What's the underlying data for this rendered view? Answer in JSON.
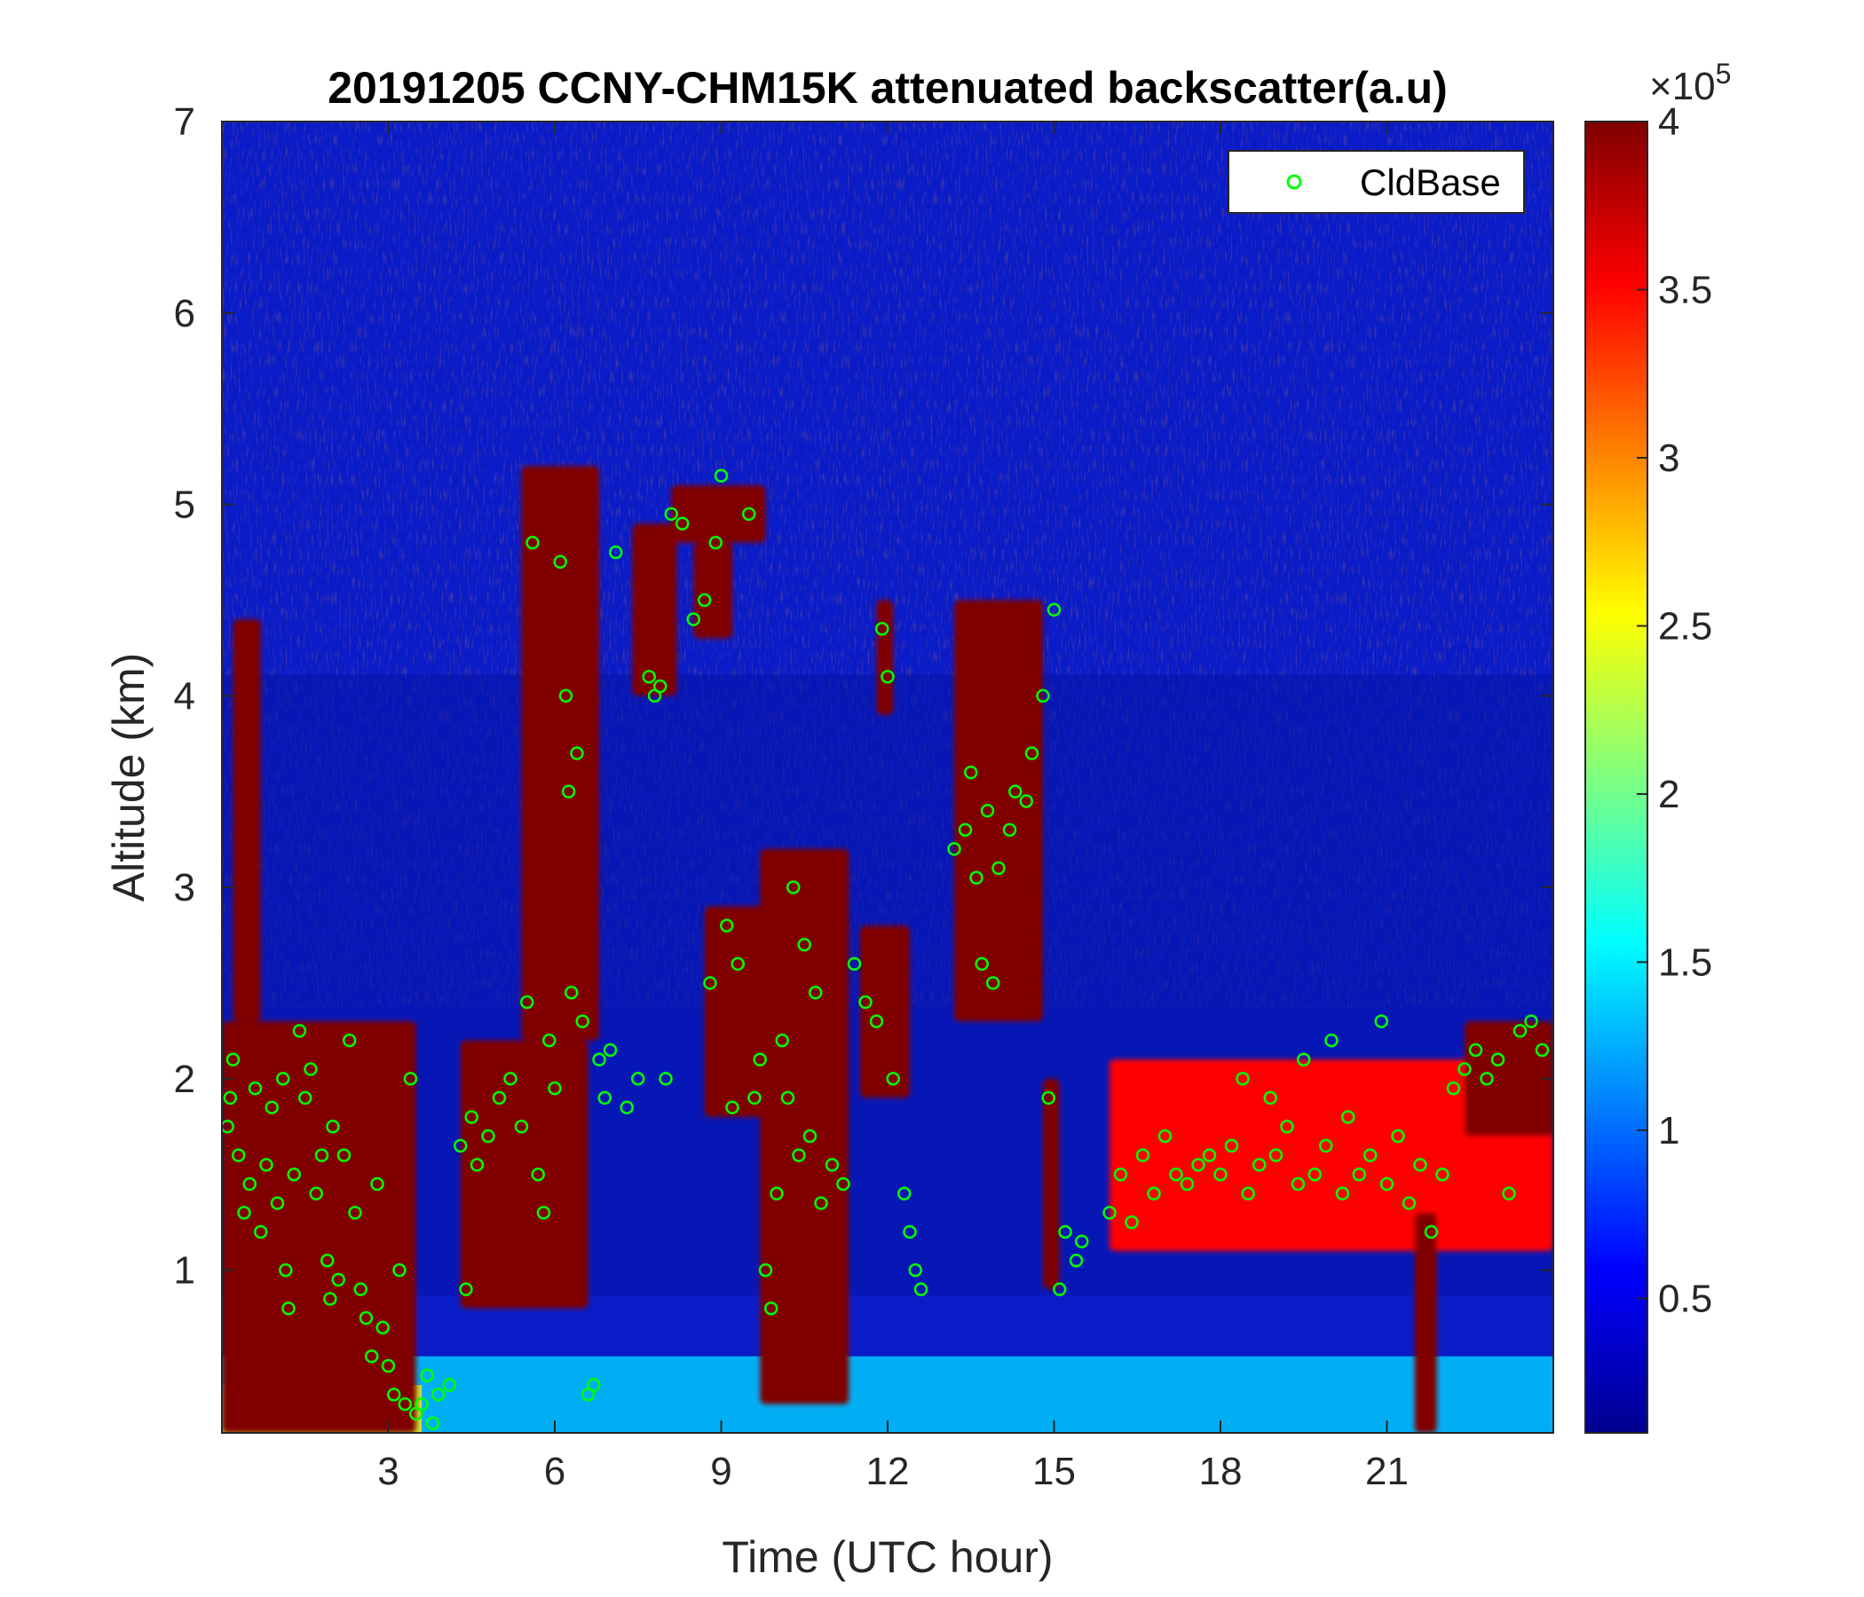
{
  "chart_data": {
    "type": "heatmap",
    "title": "20191205 CCNY-CHM15K attenuated backscatter(a.u)",
    "xlabel": "Time (UTC hour)",
    "ylabel": "Altitude (km)",
    "xlim": [
      0,
      24
    ],
    "ylim": [
      0.15,
      7
    ],
    "x_ticks": [
      "3",
      "6",
      "9",
      "12",
      "15",
      "18",
      "21"
    ],
    "y_ticks": [
      "1",
      "2",
      "3",
      "4",
      "5",
      "6",
      "7"
    ],
    "colorbar": {
      "min": 0.1,
      "max": 4,
      "ticks": [
        "0.5",
        "1",
        "1.5",
        "2",
        "2.5",
        "3",
        "3.5",
        "4"
      ],
      "exponent_base": "×10",
      "exponent_power": "5",
      "colormap": "jet"
    },
    "legend": {
      "position": "top-right",
      "entries": [
        {
          "label": "CldBase",
          "marker": "circle",
          "color": "#00ff00"
        }
      ]
    },
    "layers": [
      {
        "name": "near-surface aerosol",
        "x": [
          0,
          24
        ],
        "y": [
          0.15,
          0.55
        ],
        "value": 1.4
      },
      {
        "name": "surface layer early",
        "x": [
          0,
          3.6
        ],
        "y": [
          0.15,
          0.4
        ],
        "value": 2.6
      }
    ],
    "clouds": [
      {
        "x": [
          0,
          3.5
        ],
        "y": [
          0.15,
          2.3
        ],
        "value": 4
      },
      {
        "x": [
          0.2,
          0.7
        ],
        "y": [
          2.3,
          4.4
        ],
        "value": 4
      },
      {
        "x": [
          4.3,
          6.6
        ],
        "y": [
          0.8,
          2.2
        ],
        "value": 4
      },
      {
        "x": [
          5.4,
          6.8
        ],
        "y": [
          2.2,
          5.2
        ],
        "value": 4
      },
      {
        "x": [
          7.4,
          8.2
        ],
        "y": [
          4.0,
          4.9
        ],
        "value": 4
      },
      {
        "x": [
          8.1,
          9.8
        ],
        "y": [
          4.8,
          5.1
        ],
        "value": 4
      },
      {
        "x": [
          8.5,
          9.2
        ],
        "y": [
          4.3,
          4.8
        ],
        "value": 4
      },
      {
        "x": [
          8.7,
          10.3
        ],
        "y": [
          1.8,
          2.9
        ],
        "value": 4
      },
      {
        "x": [
          9.7,
          11.3
        ],
        "y": [
          0.3,
          3.2
        ],
        "value": 4
      },
      {
        "x": [
          11.5,
          12.4
        ],
        "y": [
          1.9,
          2.8
        ],
        "value": 4
      },
      {
        "x": [
          11.8,
          12.1
        ],
        "y": [
          3.9,
          4.5
        ],
        "value": 4
      },
      {
        "x": [
          13.2,
          14.8
        ],
        "y": [
          2.3,
          4.5
        ],
        "value": 4
      },
      {
        "x": [
          14.8,
          15.1
        ],
        "y": [
          0.9,
          2.0
        ],
        "value": 4
      },
      {
        "x": [
          16.0,
          24.0
        ],
        "y": [
          1.1,
          2.1
        ],
        "value": 3.5
      },
      {
        "x": [
          21.5,
          21.9
        ],
        "y": [
          0.15,
          1.3
        ],
        "value": 4
      },
      {
        "x": [
          22.4,
          24.0
        ],
        "y": [
          1.7,
          2.3
        ],
        "value": 4
      }
    ],
    "series": [
      {
        "name": "CldBase",
        "type": "scatter",
        "points": [
          [
            0.1,
            1.75
          ],
          [
            0.15,
            1.9
          ],
          [
            0.2,
            2.1
          ],
          [
            0.3,
            1.6
          ],
          [
            0.4,
            1.3
          ],
          [
            0.5,
            1.45
          ],
          [
            0.6,
            1.95
          ],
          [
            0.7,
            1.2
          ],
          [
            0.8,
            1.55
          ],
          [
            0.9,
            1.85
          ],
          [
            1.0,
            1.35
          ],
          [
            1.1,
            2.0
          ],
          [
            1.15,
            1.0
          ],
          [
            1.2,
            0.8
          ],
          [
            1.3,
            1.5
          ],
          [
            1.4,
            2.25
          ],
          [
            1.5,
            1.9
          ],
          [
            1.6,
            2.05
          ],
          [
            1.7,
            1.4
          ],
          [
            1.8,
            1.6
          ],
          [
            1.9,
            1.05
          ],
          [
            1.95,
            0.85
          ],
          [
            2.0,
            1.75
          ],
          [
            2.1,
            0.95
          ],
          [
            2.2,
            1.6
          ],
          [
            2.3,
            2.2
          ],
          [
            2.4,
            1.3
          ],
          [
            2.5,
            0.9
          ],
          [
            2.6,
            0.75
          ],
          [
            2.7,
            0.55
          ],
          [
            2.8,
            1.45
          ],
          [
            2.9,
            0.7
          ],
          [
            3.0,
            0.5
          ],
          [
            3.1,
            0.35
          ],
          [
            3.2,
            1.0
          ],
          [
            3.3,
            0.3
          ],
          [
            3.4,
            2.0
          ],
          [
            3.5,
            0.25
          ],
          [
            3.6,
            0.3
          ],
          [
            3.7,
            0.45
          ],
          [
            3.8,
            0.2
          ],
          [
            3.9,
            0.35
          ],
          [
            4.1,
            0.4
          ],
          [
            4.3,
            1.65
          ],
          [
            4.4,
            0.9
          ],
          [
            4.5,
            1.8
          ],
          [
            4.6,
            1.55
          ],
          [
            4.8,
            1.7
          ],
          [
            5.0,
            1.9
          ],
          [
            5.2,
            2.0
          ],
          [
            5.4,
            1.75
          ],
          [
            5.5,
            2.4
          ],
          [
            5.6,
            4.8
          ],
          [
            5.7,
            1.5
          ],
          [
            5.8,
            1.3
          ],
          [
            5.9,
            2.2
          ],
          [
            6.0,
            1.95
          ],
          [
            6.1,
            4.7
          ],
          [
            6.2,
            4.0
          ],
          [
            6.25,
            3.5
          ],
          [
            6.3,
            2.45
          ],
          [
            6.4,
            3.7
          ],
          [
            6.5,
            2.3
          ],
          [
            6.6,
            0.35
          ],
          [
            6.7,
            0.4
          ],
          [
            6.8,
            2.1
          ],
          [
            6.9,
            1.9
          ],
          [
            7.0,
            2.15
          ],
          [
            7.1,
            4.75
          ],
          [
            7.3,
            1.85
          ],
          [
            7.5,
            2.0
          ],
          [
            7.7,
            4.1
          ],
          [
            7.8,
            4.0
          ],
          [
            7.9,
            4.05
          ],
          [
            8.0,
            2.0
          ],
          [
            8.1,
            4.95
          ],
          [
            8.3,
            4.9
          ],
          [
            8.5,
            4.4
          ],
          [
            8.7,
            4.5
          ],
          [
            8.8,
            2.5
          ],
          [
            8.9,
            4.8
          ],
          [
            9.0,
            5.15
          ],
          [
            9.1,
            2.8
          ],
          [
            9.2,
            1.85
          ],
          [
            9.3,
            2.6
          ],
          [
            9.5,
            4.95
          ],
          [
            9.6,
            1.9
          ],
          [
            9.7,
            2.1
          ],
          [
            9.8,
            1.0
          ],
          [
            9.9,
            0.8
          ],
          [
            10.0,
            1.4
          ],
          [
            10.1,
            2.2
          ],
          [
            10.2,
            1.9
          ],
          [
            10.3,
            3.0
          ],
          [
            10.4,
            1.6
          ],
          [
            10.5,
            2.7
          ],
          [
            10.6,
            1.7
          ],
          [
            10.7,
            2.45
          ],
          [
            10.8,
            1.35
          ],
          [
            11.0,
            1.55
          ],
          [
            11.2,
            1.45
          ],
          [
            11.4,
            2.6
          ],
          [
            11.6,
            2.4
          ],
          [
            11.8,
            2.3
          ],
          [
            11.9,
            4.35
          ],
          [
            12.0,
            4.1
          ],
          [
            12.1,
            2.0
          ],
          [
            12.3,
            1.4
          ],
          [
            12.4,
            1.2
          ],
          [
            12.5,
            1.0
          ],
          [
            12.6,
            0.9
          ],
          [
            13.2,
            3.2
          ],
          [
            13.4,
            3.3
          ],
          [
            13.5,
            3.6
          ],
          [
            13.6,
            3.05
          ],
          [
            13.7,
            2.6
          ],
          [
            13.8,
            3.4
          ],
          [
            13.9,
            2.5
          ],
          [
            14.0,
            3.1
          ],
          [
            14.2,
            3.3
          ],
          [
            14.3,
            3.5
          ],
          [
            14.5,
            3.45
          ],
          [
            14.6,
            3.7
          ],
          [
            14.8,
            4.0
          ],
          [
            14.9,
            1.9
          ],
          [
            15.0,
            4.45
          ],
          [
            15.1,
            0.9
          ],
          [
            15.2,
            1.2
          ],
          [
            15.4,
            1.05
          ],
          [
            15.5,
            1.15
          ],
          [
            16.0,
            1.3
          ],
          [
            16.2,
            1.5
          ],
          [
            16.4,
            1.25
          ],
          [
            16.6,
            1.6
          ],
          [
            16.8,
            1.4
          ],
          [
            17.0,
            1.7
          ],
          [
            17.2,
            1.5
          ],
          [
            17.4,
            1.45
          ],
          [
            17.6,
            1.55
          ],
          [
            17.8,
            1.6
          ],
          [
            18.0,
            1.5
          ],
          [
            18.2,
            1.65
          ],
          [
            18.4,
            2.0
          ],
          [
            18.5,
            1.4
          ],
          [
            18.7,
            1.55
          ],
          [
            18.9,
            1.9
          ],
          [
            19.0,
            1.6
          ],
          [
            19.2,
            1.75
          ],
          [
            19.4,
            1.45
          ],
          [
            19.5,
            2.1
          ],
          [
            19.7,
            1.5
          ],
          [
            19.9,
            1.65
          ],
          [
            20.0,
            2.2
          ],
          [
            20.2,
            1.4
          ],
          [
            20.3,
            1.8
          ],
          [
            20.5,
            1.5
          ],
          [
            20.7,
            1.6
          ],
          [
            20.9,
            2.3
          ],
          [
            21.0,
            1.45
          ],
          [
            21.2,
            1.7
          ],
          [
            21.4,
            1.35
          ],
          [
            21.6,
            1.55
          ],
          [
            21.8,
            1.2
          ],
          [
            22.0,
            1.5
          ],
          [
            22.2,
            1.95
          ],
          [
            22.4,
            2.05
          ],
          [
            22.6,
            2.15
          ],
          [
            22.8,
            2.0
          ],
          [
            23.0,
            2.1
          ],
          [
            23.2,
            1.4
          ],
          [
            23.4,
            2.25
          ],
          [
            23.6,
            2.3
          ],
          [
            23.8,
            2.15
          ]
        ]
      }
    ]
  }
}
